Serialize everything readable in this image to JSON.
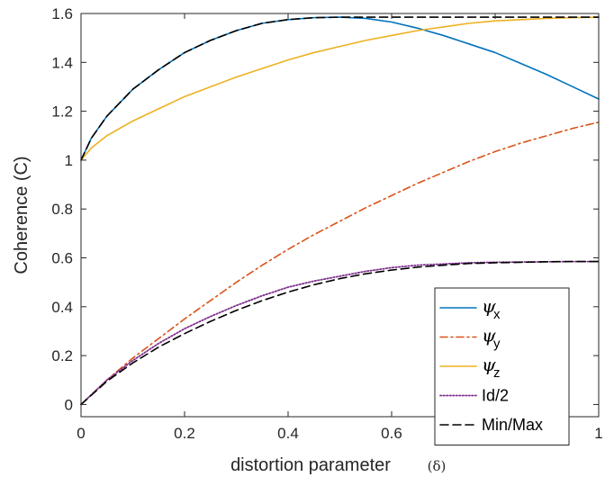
{
  "chart_data": {
    "type": "line",
    "xlabel": "distortion parameter",
    "xlabel_symbol": "(δ)",
    "ylabel": "Coherence (C)",
    "xlim": [
      0,
      1
    ],
    "ylim": [
      -0.05,
      1.6
    ],
    "xticks": [
      0,
      0.2,
      0.4,
      0.6,
      0.8,
      1
    ],
    "xtick_labels": [
      "0",
      "0.2",
      "0.4",
      "0.6",
      "",
      "1"
    ],
    "yticks": [
      0,
      0.2,
      0.4,
      0.6,
      0.8,
      1,
      1.2,
      1.4,
      1.6
    ],
    "ytick_labels": [
      "0",
      "0.2",
      "0.4",
      "0.6",
      "0.8",
      "1",
      "1.2",
      "1.4",
      "1.6"
    ],
    "grid": false,
    "legend_position": "bottom-right",
    "series": [
      {
        "name": "ψx",
        "color": "#0072BD",
        "dash": "solid",
        "x": [
          0,
          0.02,
          0.05,
          0.1,
          0.15,
          0.2,
          0.25,
          0.3,
          0.35,
          0.4,
          0.45,
          0.5,
          0.55,
          0.6,
          0.65,
          0.7,
          0.75,
          0.8,
          0.85,
          0.9,
          0.95,
          1.0
        ],
        "y": [
          1.0,
          1.09,
          1.18,
          1.29,
          1.37,
          1.44,
          1.49,
          1.53,
          1.56,
          1.575,
          1.583,
          1.585,
          1.58,
          1.565,
          1.54,
          1.51,
          1.475,
          1.44,
          1.395,
          1.35,
          1.3,
          1.25
        ]
      },
      {
        "name": "ψy",
        "color": "#D95319",
        "dash": "dashdot",
        "x": [
          0,
          0.05,
          0.1,
          0.15,
          0.2,
          0.25,
          0.3,
          0.35,
          0.4,
          0.45,
          0.5,
          0.55,
          0.6,
          0.65,
          0.7,
          0.75,
          0.8,
          0.85,
          0.9,
          0.95,
          1.0
        ],
        "y": [
          0,
          0.1,
          0.19,
          0.27,
          0.35,
          0.425,
          0.5,
          0.57,
          0.635,
          0.695,
          0.75,
          0.805,
          0.855,
          0.905,
          0.95,
          0.995,
          1.035,
          1.07,
          1.1,
          1.13,
          1.155
        ]
      },
      {
        "name": "ψz",
        "color": "#EDB120",
        "dash": "solid",
        "x": [
          0,
          0.02,
          0.05,
          0.1,
          0.15,
          0.2,
          0.25,
          0.3,
          0.35,
          0.4,
          0.45,
          0.5,
          0.55,
          0.6,
          0.65,
          0.7,
          0.75,
          0.8,
          0.85,
          0.9,
          0.95,
          1.0
        ],
        "y": [
          1.0,
          1.05,
          1.1,
          1.16,
          1.21,
          1.26,
          1.3,
          1.34,
          1.375,
          1.41,
          1.44,
          1.465,
          1.49,
          1.51,
          1.53,
          1.545,
          1.56,
          1.57,
          1.575,
          1.58,
          1.583,
          1.585
        ]
      },
      {
        "name": "Id/2",
        "color": "#7E2F8E",
        "dash": "dotted",
        "x": [
          0,
          0.05,
          0.1,
          0.15,
          0.2,
          0.25,
          0.3,
          0.35,
          0.4,
          0.45,
          0.5,
          0.55,
          0.6,
          0.65,
          0.7,
          0.75,
          0.8,
          0.85,
          0.9,
          0.95,
          1.0
        ],
        "y": [
          0,
          0.1,
          0.18,
          0.25,
          0.31,
          0.36,
          0.405,
          0.445,
          0.48,
          0.505,
          0.525,
          0.545,
          0.56,
          0.57,
          0.575,
          0.58,
          0.582,
          0.583,
          0.584,
          0.585,
          0.585
        ]
      },
      {
        "name": "Min/Max",
        "color": "#000000",
        "dash": "dashed",
        "x": [
          0,
          0.02,
          0.05,
          0.1,
          0.15,
          0.2,
          0.25,
          0.3,
          0.35,
          0.4,
          0.45,
          0.5,
          0.55,
          0.6,
          0.65,
          0.7,
          0.75,
          0.8,
          0.85,
          0.9,
          0.95,
          1.0
        ],
        "y": [
          1.0,
          1.09,
          1.18,
          1.29,
          1.37,
          1.44,
          1.49,
          1.53,
          1.56,
          1.575,
          1.583,
          1.585,
          1.585,
          1.585,
          1.585,
          1.585,
          1.585,
          1.585,
          1.585,
          1.585,
          1.585,
          1.585
        ]
      },
      {
        "name": "Min/Max (lower)",
        "legend": false,
        "color": "#000000",
        "dash": "dashed",
        "x": [
          0,
          0.05,
          0.1,
          0.15,
          0.2,
          0.25,
          0.3,
          0.35,
          0.4,
          0.45,
          0.5,
          0.55,
          0.6,
          0.65,
          0.7,
          0.75,
          0.8,
          0.85,
          0.9,
          0.95,
          1.0
        ],
        "y": [
          0,
          0.095,
          0.17,
          0.235,
          0.29,
          0.34,
          0.385,
          0.425,
          0.46,
          0.49,
          0.515,
          0.535,
          0.55,
          0.562,
          0.57,
          0.577,
          0.58,
          0.582,
          0.584,
          0.585,
          0.585
        ]
      }
    ],
    "legend": [
      {
        "label": "ψ",
        "sub": "x",
        "color": "#0072BD",
        "dash": "solid"
      },
      {
        "label": "ψ",
        "sub": "y",
        "color": "#D95319",
        "dash": "dashdot"
      },
      {
        "label": "ψ",
        "sub": "z",
        "color": "#EDB120",
        "dash": "solid"
      },
      {
        "label": "Id/2",
        "sub": "",
        "color": "#7E2F8E",
        "dash": "dotted"
      },
      {
        "label": "Min/Max",
        "sub": "",
        "color": "#000000",
        "dash": "dashed"
      }
    ]
  }
}
